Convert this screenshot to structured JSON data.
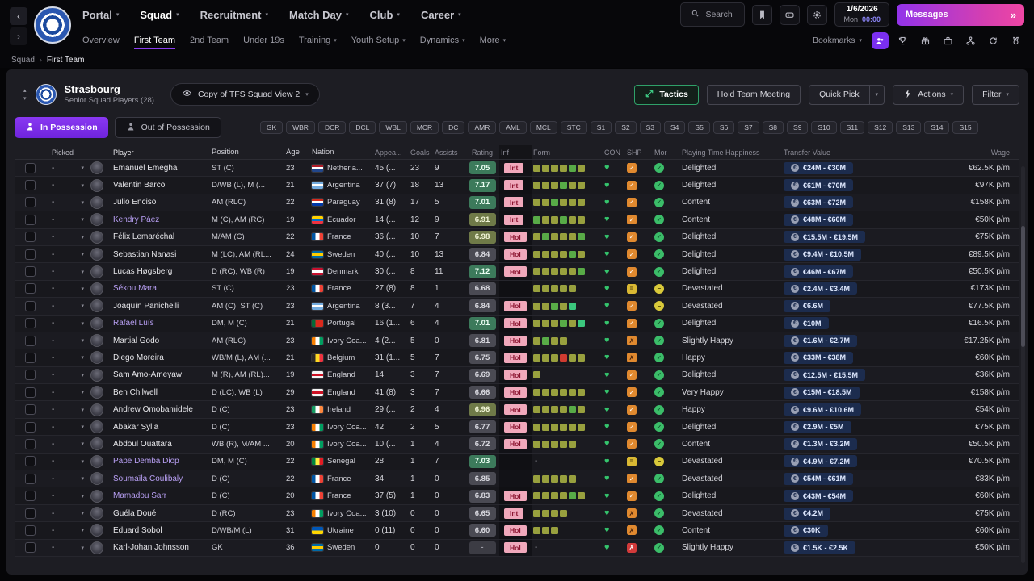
{
  "colors": {
    "accent_purple": "#7b2ff0",
    "messages_gradient_start": "#9233ea",
    "messages_gradient_end": "#ef46a4",
    "tactics_green": "#2fa169",
    "time_blue": "#8c85f7",
    "player_name_purple": "#b9a0f5",
    "inf_badge_bg": "#f0a8bb",
    "value_pill_bg": "#1c2c4e"
  },
  "top_nav": {
    "menus": [
      {
        "label": "Portal",
        "active": false
      },
      {
        "label": "Squad",
        "active": true
      },
      {
        "label": "Recruitment",
        "active": false
      },
      {
        "label": "Match Day",
        "active": false
      },
      {
        "label": "Club",
        "active": false
      },
      {
        "label": "Career",
        "active": false
      }
    ],
    "search_placeholder": "Search",
    "date": {
      "date": "1/6/2026",
      "day": "Mon",
      "time": "00:00"
    },
    "messages_label": "Messages",
    "messages_chevrons": "»"
  },
  "sub_nav": {
    "items": [
      {
        "label": "Overview",
        "active": false,
        "caret": false
      },
      {
        "label": "First Team",
        "active": true,
        "caret": false
      },
      {
        "label": "2nd Team",
        "active": false,
        "caret": false
      },
      {
        "label": "Under 19s",
        "active": false,
        "caret": false
      },
      {
        "label": "Training",
        "active": false,
        "caret": true
      },
      {
        "label": "Youth Setup",
        "active": false,
        "caret": true
      },
      {
        "label": "Dynamics",
        "active": false,
        "caret": true
      },
      {
        "label": "More",
        "active": false,
        "caret": true
      }
    ],
    "bookmarks_label": "Bookmarks",
    "icon_names": [
      "social-icon",
      "trophy-icon",
      "gift-icon",
      "briefcase-icon",
      "hierarchy-icon",
      "refresh-icon",
      "medal-icon"
    ]
  },
  "breadcrumb": {
    "items": [
      "Squad",
      "First Team"
    ],
    "separator": "›"
  },
  "squad_header": {
    "club_name": "Strasbourg",
    "subtitle": "Senior Squad Players (28)",
    "view_name": "Copy of TFS Squad View 2",
    "tactics_label": "Tactics",
    "meeting_label": "Hold Team Meeting",
    "quick_pick_label": "Quick Pick",
    "actions_label": "Actions",
    "filter_label": "Filter"
  },
  "toolbar": {
    "in_possession": "In Possession",
    "out_possession": "Out of Possession",
    "position_chips": [
      "GK",
      "WBR",
      "DCR",
      "DCL",
      "WBL",
      "MCR",
      "DC",
      "AMR",
      "AML",
      "MCL",
      "STC",
      "S1",
      "S2",
      "S3",
      "S4",
      "S5",
      "S6",
      "S7",
      "S8",
      "S9",
      "S10",
      "S11",
      "S12",
      "S13",
      "S14",
      "S15"
    ]
  },
  "table": {
    "columns": [
      "Picked",
      "Player",
      "Position",
      "Age",
      "Nation",
      "Appea...",
      "Goals",
      "Assists",
      "Rating",
      "Inf",
      "Form",
      "CON",
      "SHP",
      "Mor",
      "Playing Time Happiness",
      "Transfer Value",
      "Wage"
    ],
    "picked_placeholder": "-",
    "players": [
      {
        "name": "Emanuel Emegha",
        "purple": false,
        "position": "ST (C)",
        "age": "23",
        "nation": "Netherla...",
        "flag": "nl",
        "apps": "45 (...",
        "goals": "23",
        "assists": "9",
        "rating": "7.05",
        "rc": "good",
        "inf": "Int",
        "form": [
          "y",
          "y",
          "y",
          "y",
          "g",
          "y"
        ],
        "shp": "check",
        "mor": "check",
        "happiness": "Delighted",
        "value": "€24M - €30M",
        "wage": "€62.5K p/m"
      },
      {
        "name": "Valentin Barco",
        "purple": false,
        "position": "D/WB (L), M (...",
        "age": "21",
        "nation": "Argentina",
        "flag": "ar",
        "apps": "37 (7)",
        "goals": "18",
        "assists": "13",
        "rating": "7.17",
        "rc": "good",
        "inf": "Int",
        "form": [
          "y",
          "y",
          "y",
          "g",
          "y",
          "y"
        ],
        "shp": "check",
        "mor": "check",
        "happiness": "Delighted",
        "value": "€61M - €70M",
        "wage": "€97K p/m"
      },
      {
        "name": "Julio Enciso",
        "purple": false,
        "position": "AM (RLC)",
        "age": "22",
        "nation": "Paraguay",
        "flag": "py",
        "apps": "31 (8)",
        "goals": "17",
        "assists": "5",
        "rating": "7.01",
        "rc": "good",
        "inf": "Int",
        "form": [
          "y",
          "y",
          "g",
          "y",
          "y",
          "y"
        ],
        "shp": "check",
        "mor": "check",
        "happiness": "Content",
        "value": "€63M - €72M",
        "wage": "€158K p/m"
      },
      {
        "name": "Kendry Páez",
        "purple": true,
        "position": "M (C), AM (RC)",
        "age": "19",
        "nation": "Ecuador",
        "flag": "ec",
        "apps": "14 (...",
        "goals": "12",
        "assists": "9",
        "rating": "6.91",
        "rc": "ok",
        "inf": "Int",
        "form": [
          "g",
          "y",
          "y",
          "g",
          "y",
          "y"
        ],
        "shp": "check",
        "mor": "check",
        "happiness": "Content",
        "value": "€48M - €60M",
        "wage": "€50K p/m"
      },
      {
        "name": "Félix Lemaréchal",
        "purple": false,
        "position": "M/AM (C)",
        "age": "22",
        "nation": "France",
        "flag": "fr",
        "apps": "36 (...",
        "goals": "10",
        "assists": "7",
        "rating": "6.98",
        "rc": "ok",
        "inf": "Hol",
        "form": [
          "y",
          "g",
          "y",
          "y",
          "y",
          "g"
        ],
        "shp": "check",
        "mor": "check",
        "happiness": "Delighted",
        "value": "€15.5M - €19.5M",
        "wage": "€75K p/m"
      },
      {
        "name": "Sebastian Nanasi",
        "purple": false,
        "position": "M (LC), AM (RL...",
        "age": "24",
        "nation": "Sweden",
        "flag": "se",
        "apps": "40 (...",
        "goals": "10",
        "assists": "13",
        "rating": "6.84",
        "rc": "plain",
        "inf": "Hol",
        "form": [
          "y",
          "y",
          "y",
          "y",
          "g",
          "y"
        ],
        "shp": "check",
        "mor": "check",
        "happiness": "Delighted",
        "value": "€9.4M - €10.5M",
        "wage": "€89.5K p/m"
      },
      {
        "name": "Lucas Høgsberg",
        "purple": false,
        "position": "D (RC), WB (R)",
        "age": "19",
        "nation": "Denmark",
        "flag": "dk",
        "apps": "30 (...",
        "goals": "8",
        "assists": "11",
        "rating": "7.12",
        "rc": "good",
        "inf": "Hol",
        "form": [
          "y",
          "y",
          "y",
          "y",
          "y",
          "g"
        ],
        "shp": "check",
        "mor": "check",
        "happiness": "Delighted",
        "value": "€46M - €67M",
        "wage": "€50.5K p/m"
      },
      {
        "name": "Sékou Mara",
        "purple": true,
        "position": "ST (C)",
        "age": "23",
        "nation": "France",
        "flag": "fr",
        "apps": "27 (8)",
        "goals": "8",
        "assists": "1",
        "rating": "6.68",
        "rc": "plain",
        "inf": "",
        "form": [
          "y",
          "y",
          "y",
          "y",
          "y"
        ],
        "shp": "eq",
        "mor": "dash",
        "happiness": "Devastated",
        "value": "€2.4M - €3.4M",
        "wage": "€173K p/m"
      },
      {
        "name": "Joaquín Panichelli",
        "purple": false,
        "position": "AM (C), ST (C)",
        "age": "23",
        "nation": "Argentina",
        "flag": "ar",
        "apps": "8 (3...",
        "goals": "7",
        "assists": "4",
        "rating": "6.84",
        "rc": "plain",
        "inf": "Hol",
        "form": [
          "y",
          "y",
          "g",
          "y",
          "t"
        ],
        "shp": "check",
        "mor": "dash",
        "happiness": "Devastated",
        "value": "€6.6M",
        "wage": "€77.5K p/m"
      },
      {
        "name": "Rafael Luís",
        "purple": true,
        "position": "DM, M (C)",
        "age": "21",
        "nation": "Portugal",
        "flag": "pt",
        "apps": "16 (1...",
        "goals": "6",
        "assists": "4",
        "rating": "7.01",
        "rc": "good",
        "inf": "Hol",
        "form": [
          "y",
          "y",
          "y",
          "g",
          "y",
          "t"
        ],
        "shp": "check",
        "mor": "check",
        "happiness": "Delighted",
        "value": "€10M",
        "wage": "€16.5K p/m"
      },
      {
        "name": "Martial Godo",
        "purple": false,
        "position": "AM (RLC)",
        "age": "23",
        "nation": "Ivory Coa...",
        "flag": "ci",
        "apps": "4 (2...",
        "goals": "5",
        "assists": "0",
        "rating": "6.81",
        "rc": "plain",
        "inf": "Hol",
        "form": [
          "y",
          "g",
          "y",
          "y"
        ],
        "shp": "cross",
        "mor": "check",
        "happiness": "Slightly Happy",
        "value": "€1.6M - €2.7M",
        "wage": "€17.25K p/m"
      },
      {
        "name": "Diego Moreira",
        "purple": false,
        "position": "WB/M (L), AM (...",
        "age": "21",
        "nation": "Belgium",
        "flag": "be",
        "apps": "31 (1...",
        "goals": "5",
        "assists": "7",
        "rating": "6.75",
        "rc": "plain",
        "inf": "Hol",
        "form": [
          "y",
          "y",
          "y",
          "r",
          "y",
          "y"
        ],
        "shp": "cross",
        "mor": "check",
        "happiness": "Happy",
        "value": "€33M - €38M",
        "wage": "€60K p/m"
      },
      {
        "name": "Sam Amo-Ameyaw",
        "purple": false,
        "position": "M (R), AM (RL)...",
        "age": "19",
        "nation": "England",
        "flag": "en",
        "apps": "14",
        "goals": "3",
        "assists": "7",
        "rating": "6.69",
        "rc": "plain",
        "inf": "Hol",
        "form": [
          "y"
        ],
        "shp": "check",
        "mor": "check",
        "happiness": "Delighted",
        "value": "€12.5M - €15.5M",
        "wage": "€36K p/m"
      },
      {
        "name": "Ben Chilwell",
        "purple": false,
        "position": "D (LC), WB (L)",
        "age": "29",
        "nation": "England",
        "flag": "en",
        "apps": "41 (8)",
        "goals": "3",
        "assists": "7",
        "rating": "6.66",
        "rc": "plain",
        "inf": "Hol",
        "form": [
          "y",
          "y",
          "y",
          "y",
          "y",
          "y"
        ],
        "shp": "check",
        "mor": "check",
        "happiness": "Very Happy",
        "value": "€15M - €18.5M",
        "wage": "€158K p/m"
      },
      {
        "name": "Andrew Omobamidele",
        "purple": false,
        "position": "D (C)",
        "age": "23",
        "nation": "Ireland",
        "flag": "ie",
        "apps": "29 (...",
        "goals": "2",
        "assists": "4",
        "rating": "6.96",
        "rc": "ok",
        "inf": "Hol",
        "form": [
          "y",
          "y",
          "y",
          "y",
          "g",
          "y"
        ],
        "shp": "check",
        "mor": "check",
        "happiness": "Happy",
        "value": "€9.6M - €10.6M",
        "wage": "€54K p/m"
      },
      {
        "name": "Abakar Sylla",
        "purple": false,
        "position": "D (C)",
        "age": "23",
        "nation": "Ivory Coa...",
        "flag": "ci",
        "apps": "42",
        "goals": "2",
        "assists": "5",
        "rating": "6.77",
        "rc": "plain",
        "inf": "Hol",
        "form": [
          "y",
          "y",
          "y",
          "y",
          "y",
          "y"
        ],
        "shp": "check",
        "mor": "check",
        "happiness": "Delighted",
        "value": "€2.9M - €5M",
        "wage": "€75K p/m"
      },
      {
        "name": "Abdoul Ouattara",
        "purple": false,
        "position": "WB (R), M/AM ...",
        "age": "20",
        "nation": "Ivory Coa...",
        "flag": "ci",
        "apps": "10 (...",
        "goals": "1",
        "assists": "4",
        "rating": "6.72",
        "rc": "plain",
        "inf": "Hol",
        "form": [
          "y",
          "y",
          "y",
          "y",
          "y"
        ],
        "shp": "check",
        "mor": "check",
        "happiness": "Content",
        "value": "€1.3M - €3.2M",
        "wage": "€50.5K p/m"
      },
      {
        "name": "Pape Demba Diop",
        "purple": true,
        "position": "DM, M (C)",
        "age": "22",
        "nation": "Senegal",
        "flag": "sn",
        "apps": "28",
        "goals": "1",
        "assists": "7",
        "rating": "7.03",
        "rc": "good",
        "inf": "",
        "form": null,
        "shp": "eq",
        "mor": "dash",
        "happiness": "Devastated",
        "value": "€4.9M - €7.2M",
        "wage": "€70.5K p/m"
      },
      {
        "name": "Soumaïla Coulibaly",
        "purple": true,
        "position": "D (C)",
        "age": "22",
        "nation": "France",
        "flag": "fr",
        "apps": "34",
        "goals": "1",
        "assists": "0",
        "rating": "6.85",
        "rc": "plain",
        "inf": "",
        "form": [
          "y",
          "y",
          "y",
          "y",
          "y"
        ],
        "shp": "check",
        "mor": "check",
        "happiness": "Devastated",
        "value": "€54M - €61M",
        "wage": "€83K p/m"
      },
      {
        "name": "Mamadou Sarr",
        "purple": true,
        "position": "D (C)",
        "age": "20",
        "nation": "France",
        "flag": "fr",
        "apps": "37 (5)",
        "goals": "1",
        "assists": "0",
        "rating": "6.83",
        "rc": "plain",
        "inf": "Hol",
        "form": [
          "y",
          "y",
          "y",
          "y",
          "g",
          "y"
        ],
        "shp": "check",
        "mor": "check",
        "happiness": "Delighted",
        "value": "€43M - €54M",
        "wage": "€60K p/m"
      },
      {
        "name": "Guéla Doué",
        "purple": false,
        "position": "D (RC)",
        "age": "23",
        "nation": "Ivory Coa...",
        "flag": "ci",
        "apps": "3 (10)",
        "goals": "0",
        "assists": "0",
        "rating": "6.65",
        "rc": "plain",
        "inf": "Int",
        "form": [
          "y",
          "y",
          "y",
          "y"
        ],
        "shp": "cross",
        "mor": "check",
        "happiness": "Devastated",
        "value": "€4.2M",
        "wage": "€75K p/m"
      },
      {
        "name": "Eduard Sobol",
        "purple": false,
        "position": "D/WB/M (L)",
        "age": "31",
        "nation": "Ukraine",
        "flag": "ua",
        "apps": "0 (11)",
        "goals": "0",
        "assists": "0",
        "rating": "6.60",
        "rc": "plain",
        "inf": "Hol",
        "form": [
          "y",
          "y",
          "y"
        ],
        "shp": "cross",
        "mor": "check",
        "happiness": "Content",
        "value": "€30K",
        "wage": "€60K p/m"
      },
      {
        "name": "Karl-Johan Johnsson",
        "purple": false,
        "position": "GK",
        "age": "36",
        "nation": "Sweden",
        "flag": "se",
        "apps": "0",
        "goals": "0",
        "assists": "0",
        "rating": "-",
        "rc": "none",
        "inf": "Hol",
        "form": null,
        "shp": "redcross",
        "mor": "check",
        "happiness": "Slightly Happy",
        "value": "€1.5K - €2.5K",
        "wage": "€50K p/m"
      }
    ]
  },
  "flags": {
    "nl": {
      "d": "h",
      "c": [
        "#ae1c28",
        "#ffffff",
        "#21468b"
      ]
    },
    "ar": {
      "d": "h",
      "c": [
        "#74acdf",
        "#ffffff",
        "#74acdf"
      ]
    },
    "py": {
      "d": "h",
      "c": [
        "#d52b1e",
        "#ffffff",
        "#0038a8"
      ]
    },
    "ec": {
      "d": "h",
      "c": [
        "#ffd100",
        "#0072ce",
        "#ef3340"
      ]
    },
    "fr": {
      "d": "v",
      "c": [
        "#0055a4",
        "#ffffff",
        "#ef4135"
      ]
    },
    "se": {
      "d": "h",
      "c": [
        "#006aa7",
        "#fecc00",
        "#006aa7"
      ]
    },
    "dk": {
      "d": "h",
      "c": [
        "#c8102e",
        "#ffffff",
        "#c8102e"
      ]
    },
    "pt": {
      "d": "v",
      "c": [
        "#046a38",
        "#da291c",
        "#da291c"
      ]
    },
    "ci": {
      "d": "v",
      "c": [
        "#f77f00",
        "#ffffff",
        "#009e60"
      ]
    },
    "be": {
      "d": "v",
      "c": [
        "#2d2926",
        "#fdda24",
        "#ef3340"
      ]
    },
    "en": {
      "d": "h",
      "c": [
        "#f4f4f4",
        "#ce1124",
        "#f4f4f4"
      ]
    },
    "ie": {
      "d": "v",
      "c": [
        "#169b62",
        "#ffffff",
        "#ff883e"
      ]
    },
    "sn": {
      "d": "v",
      "c": [
        "#00853f",
        "#fdef42",
        "#e31b23"
      ]
    },
    "ua": {
      "d": "h",
      "c": [
        "#0057b7",
        "#ffd700"
      ]
    }
  }
}
